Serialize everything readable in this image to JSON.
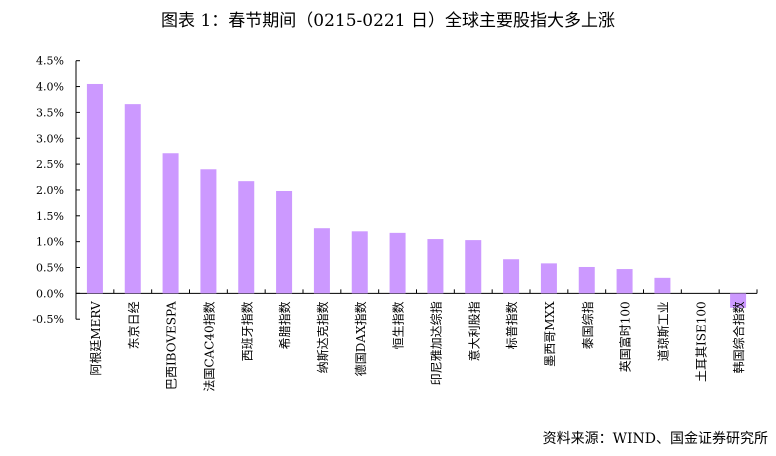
{
  "chart_data": {
    "type": "bar",
    "title": "图表 1：春节期间（0215-0221 日）全球主要股指大多上涨",
    "xlabel": "",
    "ylabel": "",
    "ylim": [
      -0.5,
      4.5
    ],
    "yticks": [
      "4.5%",
      "4.0%",
      "3.5%",
      "3.0%",
      "2.5%",
      "2.0%",
      "1.5%",
      "1.0%",
      "0.5%",
      "0.0%",
      "-0.5%"
    ],
    "ytick_values": [
      4.5,
      4.0,
      3.5,
      3.0,
      2.5,
      2.0,
      1.5,
      1.0,
      0.5,
      0.0,
      -0.5
    ],
    "categories": [
      "阿根廷MERV",
      "东京日经",
      "巴西IBOVESPA",
      "法国CAC40指数",
      "西班牙指数",
      "希腊指数",
      "纳斯达克指数",
      "德国DAX指数",
      "恒生指数",
      "印尼雅加达综指",
      "意大利股指",
      "标普指数",
      "墨西哥MXX",
      "泰国综指",
      "英国富时100",
      "道琼斯工业",
      "土耳其ISE100",
      "韩国综合指数"
    ],
    "values": [
      4.05,
      3.66,
      2.71,
      2.4,
      2.17,
      1.98,
      1.26,
      1.2,
      1.17,
      1.05,
      1.03,
      0.66,
      0.58,
      0.51,
      0.47,
      0.3,
      0.0,
      -0.28
    ],
    "unit": "%",
    "grid": false,
    "bar_color": "#cc99ff"
  },
  "source": "资料来源：WIND、国金证券研究所"
}
